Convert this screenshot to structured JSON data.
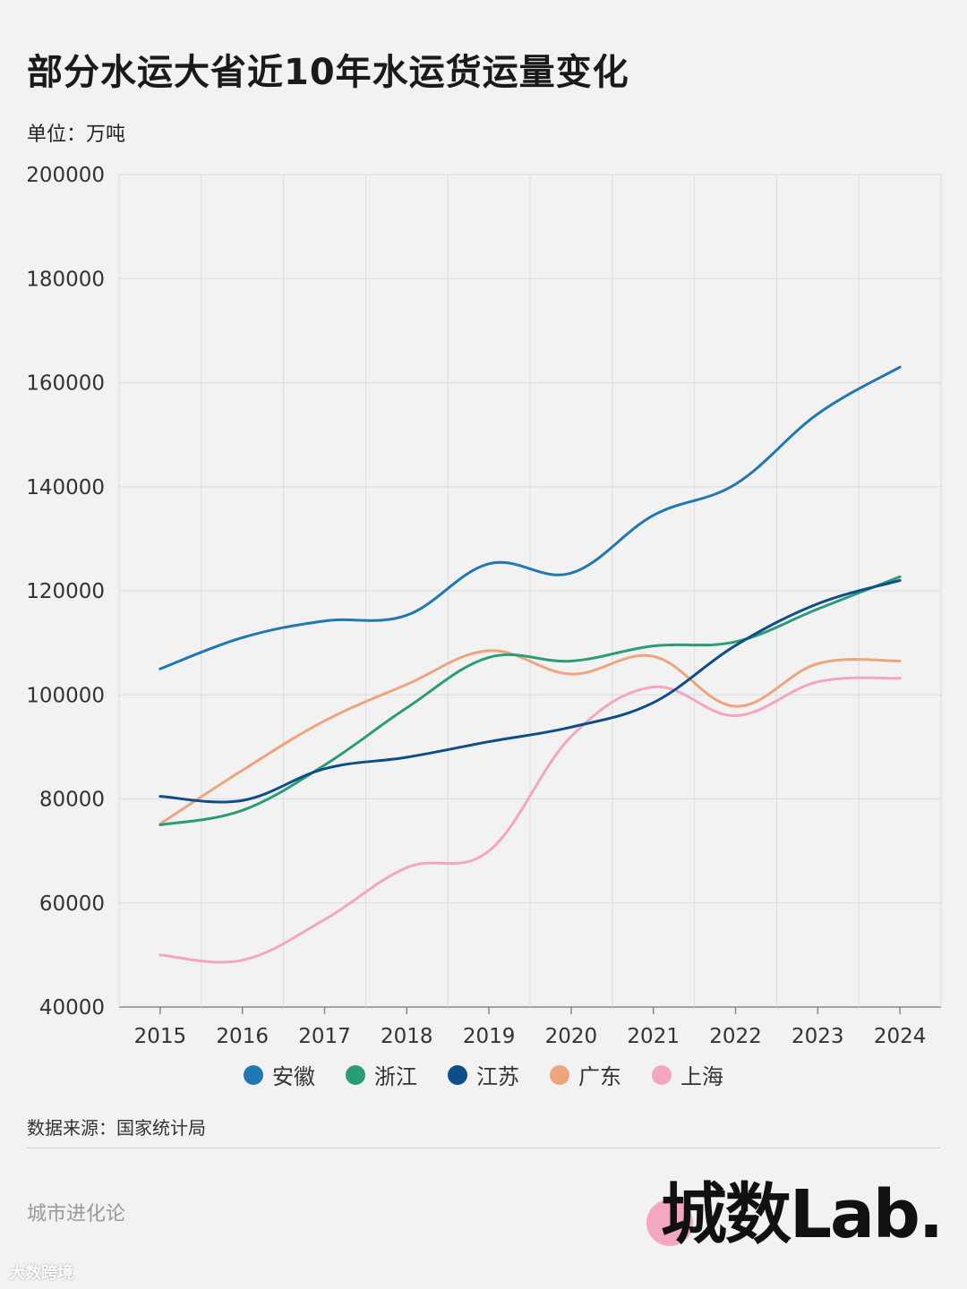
{
  "header": {
    "title": "部分水运大省近10年水运货运量变化",
    "unit": "单位：万吨"
  },
  "chart_data": {
    "type": "line",
    "x": [
      2015,
      2016,
      2017,
      2018,
      2019,
      2020,
      2021,
      2022,
      2023,
      2024
    ],
    "ylim": [
      40000,
      200000
    ],
    "yticks": [
      40000,
      60000,
      80000,
      100000,
      120000,
      140000,
      160000,
      180000,
      200000
    ],
    "grid": true,
    "legend_position": "bottom",
    "series": [
      {
        "name": "安徽",
        "color": "#1f78b4",
        "values": [
          105000,
          111000,
          114200,
          115300,
          125200,
          123400,
          134500,
          140500,
          154000,
          163000
        ]
      },
      {
        "name": "浙江",
        "color": "#2a9d74",
        "values": [
          75000,
          77800,
          86500,
          97500,
          107200,
          106500,
          109400,
          110200,
          116500,
          122700
        ]
      },
      {
        "name": "江苏",
        "color": "#0d4e8a",
        "values": [
          80500,
          79700,
          85800,
          88000,
          91000,
          93800,
          98500,
          109500,
          117500,
          122000
        ]
      },
      {
        "name": "广东",
        "color": "#eea47c",
        "values": [
          75200,
          85500,
          95000,
          102000,
          108500,
          104000,
          107400,
          97800,
          106000,
          106500
        ]
      },
      {
        "name": "上海",
        "color": "#f4a5c0",
        "values": [
          50000,
          49000,
          56800,
          66800,
          70000,
          92000,
          101500,
          96000,
          102500,
          103200
        ]
      }
    ]
  },
  "footer": {
    "source": "数据来源：国家统计局",
    "brand": "城市进化论",
    "logo": "城数Lab.",
    "watermark": "大数跨境"
  }
}
